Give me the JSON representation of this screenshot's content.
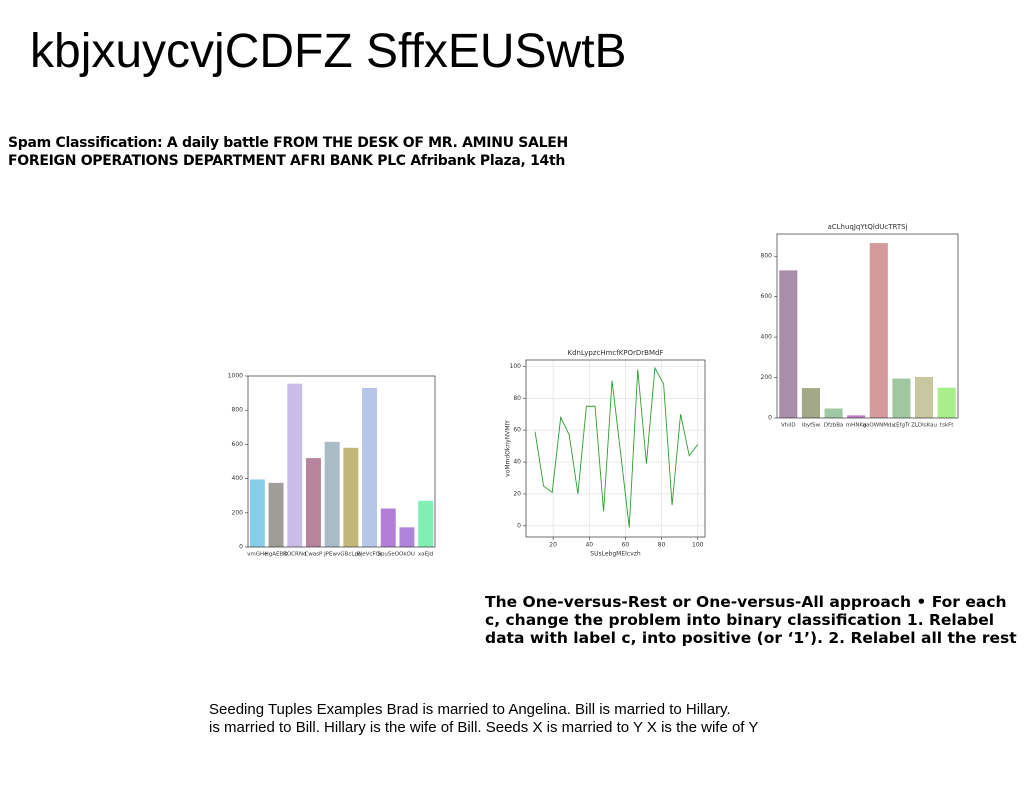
{
  "header": {
    "title": "kbjxuycvjCDFZ SffxEUSwtB"
  },
  "heading": {
    "lines": [
      "Spam Classification: A daily battle FROM THE DESK OF MR. AMINU SALEH",
      "FOREIGN OPERATIONS DEPARTMENT AFRI BANK PLC Afribank Plaza, 14th"
    ]
  },
  "paragraph": {
    "lines": [
      "The One-versus-Rest or One-versus-All approach • For each",
      "c, change the problem into binary classification 1. Relabel",
      "data with label c, into positive (or ‘1’). 2. Relabel all the rest"
    ]
  },
  "footer": {
    "lines": [
      "Seeding Tuples Examples Brad is married to Angelina. Bill is married to Hillary.",
      "is married to Bill. Hillary is the wife of Bill. Seeds X is married to Y X is the wife of Y"
    ]
  },
  "chart_data": [
    {
      "type": "bar",
      "categories": [
        "vmGHe",
        "HgAEBQ",
        "ROCRNd",
        "CwasP",
        "JPEwv",
        "GBcLpn",
        "BjeVcFQr",
        "SpuSeO",
        "OkOU",
        "xaEJd"
      ],
      "values": [
        395,
        375,
        955,
        520,
        615,
        580,
        930,
        225,
        115,
        270
      ],
      "colors": [
        "#87ceeb",
        "#a09c98",
        "#c9bde8",
        "#b7839d",
        "#a9bcc6",
        "#c3b67a",
        "#b5c6e6",
        "#b37fd6",
        "#b184dc",
        "#7ff0b2"
      ],
      "ylim": [
        0,
        1000
      ],
      "yticks": [
        0,
        200,
        400,
        600,
        800,
        1000
      ],
      "grid": false
    },
    {
      "type": "line",
      "title": "KdnLypzcHmcfKPOrDrBMdF",
      "x_label": "SUsLebgMEIcvzh",
      "y_label": "voMmdOknyNVMIY",
      "x": [
        10,
        14.7,
        19.5,
        24.2,
        28.9,
        33.7,
        38.4,
        43.2,
        47.9,
        52.6,
        57.4,
        62.1,
        66.8,
        71.6,
        76.3,
        81.1,
        85.8,
        90.5,
        95.3,
        100
      ],
      "series": [
        {
          "name": "series",
          "color": "#2e9e2e",
          "values": [
            59,
            25,
            21,
            68,
            57,
            20,
            75,
            75,
            9,
            91,
            45,
            -1,
            98,
            39,
            99,
            89,
            13,
            70,
            44,
            51
          ]
        }
      ],
      "xlim": [
        5,
        104
      ],
      "xticks": [
        20,
        40,
        60,
        80,
        100
      ],
      "ylim": [
        -7,
        104
      ],
      "yticks": [
        0,
        20,
        40,
        60,
        80,
        100
      ],
      "grid": true
    },
    {
      "type": "bar",
      "title": "aCLhuqJqYtQldUcTRTSj",
      "categories": [
        "VhiID",
        "ibyfSw",
        "DfzbBa",
        "mHNKg",
        "aaOWNMdu",
        "cEfgTr",
        "ZLDIsKau",
        "tskFt"
      ],
      "values": [
        730,
        148,
        47,
        13,
        865,
        195,
        203,
        150
      ],
      "colors": [
        "#a88ea8",
        "#a3a988",
        "#9fc7a3",
        "#c07ec7",
        "#d4999a",
        "#9fc8a0",
        "#c8c7a0",
        "#a9ee8a"
      ],
      "ylim": [
        0,
        910
      ],
      "yticks": [
        0,
        200,
        400,
        600,
        800
      ],
      "grid": false
    }
  ]
}
